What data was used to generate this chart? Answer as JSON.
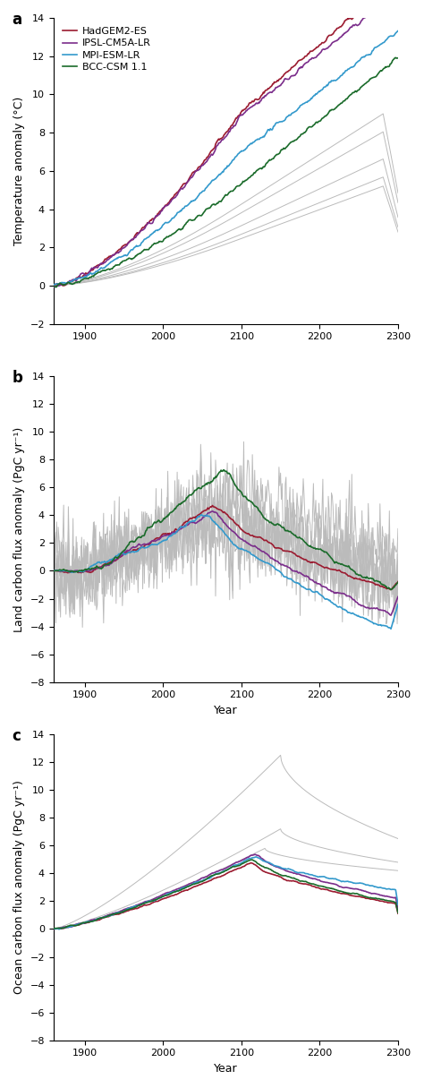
{
  "colors": {
    "HadGEM2-ES": "#9B1B30",
    "IPSL-CM5A-LR": "#7B2D8B",
    "MPI-ESM-LR": "#3399CC",
    "BCC-CSM1.1": "#1A6B2A",
    "gray_light": "#CCCCCC",
    "gray_mid": "#AAAAAA"
  },
  "legend_labels": [
    "HadGEM2-ES",
    "IPSL-CM5A-LR",
    "MPI-ESM-LR",
    "BCC-CSM 1.1"
  ],
  "panel_labels": [
    "a",
    "b",
    "c"
  ],
  "xlim": [
    1860,
    2300
  ],
  "xticks": [
    1900,
    2000,
    2100,
    2200,
    2300
  ],
  "panel_a": {
    "ylabel": "Temperature anomaly (°C)",
    "ylim": [
      -2,
      14
    ],
    "yticks": [
      -2,
      0,
      2,
      4,
      6,
      8,
      10,
      12,
      14
    ]
  },
  "panel_b": {
    "ylabel": "Land carbon flux anomaly (PgC yr⁻¹)",
    "ylim": [
      -8,
      14
    ],
    "yticks": [
      -8,
      -6,
      -4,
      -2,
      0,
      2,
      4,
      6,
      8,
      10,
      12,
      14
    ]
  },
  "panel_c": {
    "ylabel": "Ocean carbon flux anomaly (PgC yr⁻¹)",
    "xlabel": "Year",
    "ylim": [
      -8,
      14
    ],
    "yticks": [
      -8,
      -6,
      -4,
      -2,
      0,
      2,
      4,
      6,
      8,
      10,
      12,
      14
    ]
  }
}
